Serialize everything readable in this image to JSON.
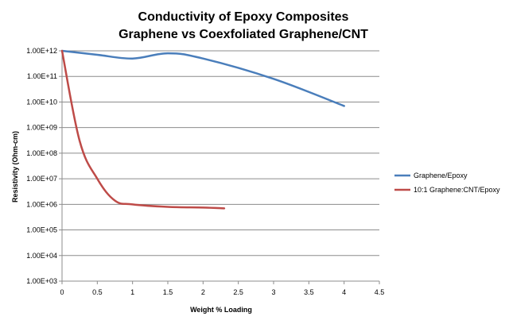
{
  "chart_data": {
    "type": "line",
    "title_line1": "Conductivity of Epoxy Composites",
    "title_line2": "Graphene vs Coexfoliated Graphene/CNT",
    "xlabel": "Weight % Loading",
    "ylabel": "Resistivity (Ohm-cm)",
    "xlim": [
      0,
      4.5
    ],
    "ylim": [
      1000,
      1000000000000
    ],
    "y_scale": "log",
    "x_ticks": [
      "0",
      "0.5",
      "1",
      "1.5",
      "2",
      "2.5",
      "3",
      "3.5",
      "4",
      "4.5"
    ],
    "y_ticks": [
      "1.00E+03",
      "1.00E+04",
      "1.00E+05",
      "1.00E+06",
      "1.00E+07",
      "1.00E+08",
      "1.00E+09",
      "1.00E+10",
      "1.00E+11",
      "1.00E+12"
    ],
    "grid": "horizontal",
    "legend_position": "right",
    "series": [
      {
        "name": "Graphene/Epoxy",
        "color": "#4a7ebb",
        "x": [
          0,
          0.5,
          1.0,
          1.5,
          2.0,
          3.0,
          4.0
        ],
        "y": [
          1000000000000.0,
          700000000000.0,
          500000000000.0,
          800000000000.0,
          500000000000.0,
          80000000000.0,
          7000000000.0
        ]
      },
      {
        "name": "10:1 Graphene:CNT/Epoxy",
        "color": "#be4b48",
        "x": [
          0,
          0.25,
          0.5,
          0.75,
          1.0,
          1.5,
          2.0,
          2.3
        ],
        "y": [
          1000000000000.0,
          300000000.0,
          10000000.0,
          1400000.0,
          1000000.0,
          800000.0,
          750000.0,
          700000.0
        ]
      }
    ]
  }
}
